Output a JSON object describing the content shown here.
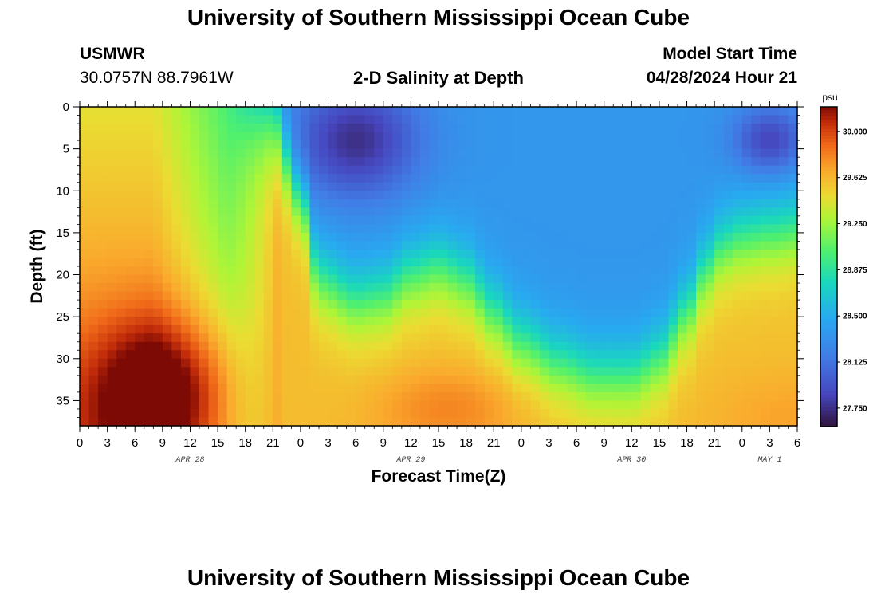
{
  "header": {
    "title": "University of Southern Mississippi Ocean Cube",
    "station_id": "USMWR",
    "coords": "30.0757N  88.7961W",
    "subtitle": "2-D Salinity at Depth",
    "model_start_label": "Model Start Time",
    "model_start_value": "04/28/2024 Hour 21"
  },
  "footer": {
    "title": "University of Southern Mississippi Ocean Cube"
  },
  "chart_data": {
    "type": "heatmap",
    "title": "2-D Salinity at Depth",
    "xlabel": "Forecast Time(Z)",
    "ylabel": "Depth (ft)",
    "x_range_hours": [
      0,
      78
    ],
    "x_tick_labels": [
      "0",
      "3",
      "6",
      "9",
      "12",
      "15",
      "18",
      "21",
      "0",
      "3",
      "6",
      "9",
      "12",
      "15",
      "18",
      "21",
      "0",
      "3",
      "6",
      "9",
      "12",
      "15",
      "18",
      "21",
      "0",
      "3",
      "6"
    ],
    "date_labels": [
      {
        "label": "APR 28",
        "hour": 12
      },
      {
        "label": "APR 29",
        "hour": 36
      },
      {
        "label": "APR 30",
        "hour": 60
      },
      {
        "label": "MAY 1",
        "hour": 75
      }
    ],
    "ylim": [
      0,
      38
    ],
    "y_ticks": [
      0,
      5,
      10,
      15,
      20,
      25,
      30,
      35
    ],
    "colorbar": {
      "unit": "psu",
      "range": [
        27.6,
        30.2
      ],
      "tick_values": [
        27.75,
        28.125,
        28.5,
        28.875,
        29.25,
        29.625,
        30.0
      ],
      "tick_labels": [
        "27.750",
        "28.125",
        "28.500",
        "28.875",
        "29.250",
        "29.625",
        "30.000"
      ]
    },
    "isohaline_28_9_depth_ft": {
      "hours": [
        0,
        12,
        18,
        21,
        24,
        26,
        30,
        33,
        36,
        39,
        42,
        45,
        48,
        52,
        56,
        60,
        63,
        66,
        68,
        70,
        72,
        75,
        78
      ],
      "depths": [
        0,
        0,
        0,
        0,
        10,
        20,
        22.5,
        22,
        19.5,
        18.5,
        20,
        24,
        27.5,
        30,
        31.5,
        31.5,
        29.5,
        24,
        19,
        16,
        15,
        14.5,
        14
      ]
    },
    "fresh_cores": [
      {
        "center_hour": 30,
        "center_depth_ft": 4,
        "min_psu": 27.7
      },
      {
        "center_hour": 75,
        "center_depth_ft": 4,
        "min_psu": 27.8
      }
    ],
    "saline_maxima": [
      {
        "center_hour": 9,
        "center_depth_ft": 34,
        "max_psu": 30.15
      },
      {
        "center_hour": 40,
        "center_depth_ft": 36,
        "max_psu": 29.6
      },
      {
        "center_hour": 77,
        "center_depth_ft": 37,
        "max_psu": 29.5
      }
    ]
  }
}
